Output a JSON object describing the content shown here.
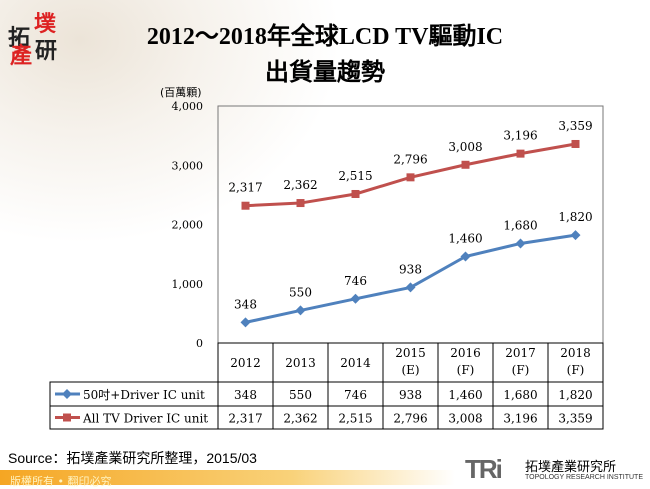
{
  "logo_text": [
    "拓",
    "墣",
    "產",
    "研"
  ],
  "title_line1": "2012～2018年全球LCD TV驅動IC",
  "title_line2": "出貨量趨勢",
  "chart_data": {
    "type": "line",
    "title": "2012～2018年全球LCD TV驅動IC 出貨量趨勢",
    "ylabel": "(百萬顆)",
    "ylim": [
      0,
      4000
    ],
    "yticks": [
      "0",
      "1,000",
      "2,000",
      "3,000",
      "4,000"
    ],
    "categories": [
      "2012",
      "2013",
      "2014",
      "2015 (E)",
      "2016 (F)",
      "2017 (F)",
      "2018 (F)"
    ],
    "category_lines": [
      [
        "2012"
      ],
      [
        "2013"
      ],
      [
        "2014"
      ],
      [
        "2015",
        "(E)"
      ],
      [
        "2016",
        "(F)"
      ],
      [
        "2017",
        "(F)"
      ],
      [
        "2018",
        "(F)"
      ]
    ],
    "grid": false,
    "legend": "data-table",
    "series": [
      {
        "name": "50吋+Driver IC unit",
        "color": "#4f81bd",
        "marker": "diamond",
        "values": [
          348,
          550,
          746,
          938,
          1460,
          1680,
          1820
        ],
        "labels": [
          "348",
          "550",
          "746",
          "938",
          "1,460",
          "1,680",
          "1,820"
        ]
      },
      {
        "name": "All TV Driver IC unit",
        "color": "#c0504d",
        "marker": "square",
        "values": [
          2317,
          2362,
          2515,
          2796,
          3008,
          3196,
          3359
        ],
        "labels": [
          "2,317",
          "2,362",
          "2,515",
          "2,796",
          "3,008",
          "3,196",
          "3,359"
        ]
      }
    ]
  },
  "source": "Source：拓墣產業研究所整理，2015/03",
  "footer": "版權所有 • 翻印必究",
  "brand": {
    "mark": "TRi",
    "name_zh": "拓墣產業研究所",
    "name_en": "TOPOLOGY RESEARCH INSTITUTE"
  }
}
